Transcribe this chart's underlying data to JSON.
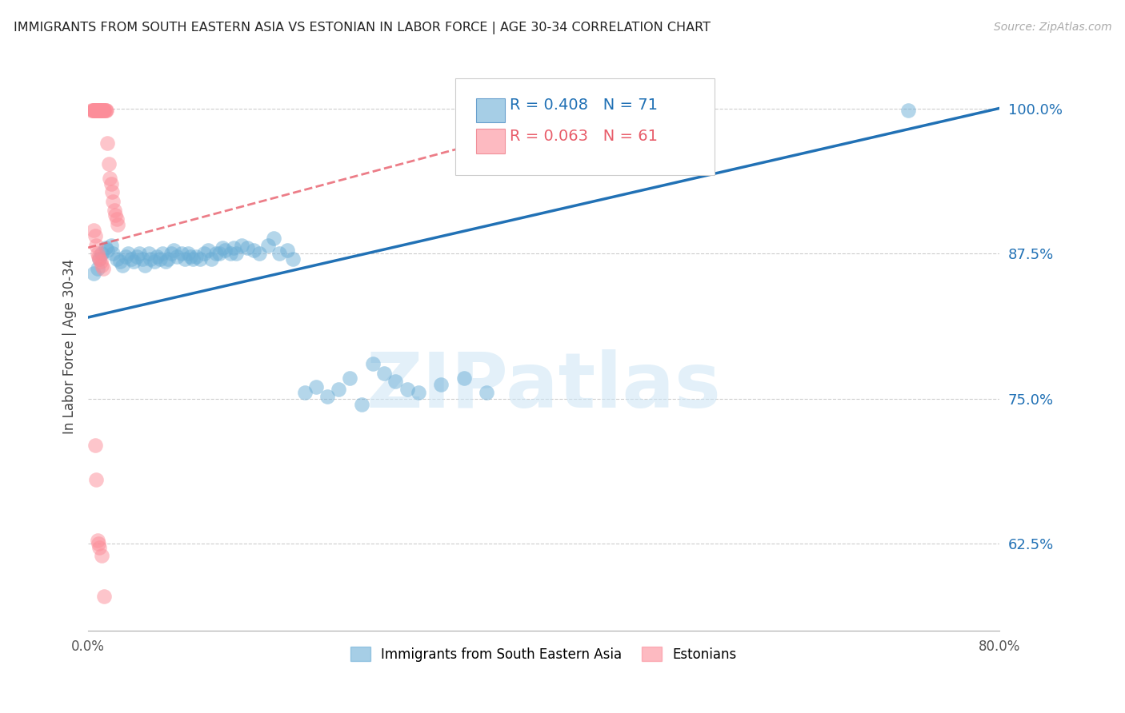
{
  "title": "IMMIGRANTS FROM SOUTH EASTERN ASIA VS ESTONIAN IN LABOR FORCE | AGE 30-34 CORRELATION CHART",
  "source": "Source: ZipAtlas.com",
  "ylabel": "In Labor Force | Age 30-34",
  "xlim": [
    0.0,
    0.8
  ],
  "ylim": [
    0.55,
    1.04
  ],
  "xticks": [
    0.0,
    0.1,
    0.2,
    0.3,
    0.4,
    0.5,
    0.6,
    0.7,
    0.8
  ],
  "xticklabels": [
    "0.0%",
    "",
    "",
    "",
    "",
    "",
    "",
    "",
    "80.0%"
  ],
  "yticks_right": [
    0.625,
    0.75,
    0.875,
    1.0
  ],
  "yticklabels_right": [
    "62.5%",
    "75.0%",
    "87.5%",
    "100.0%"
  ],
  "blue_color": "#6BAED6",
  "pink_color": "#FC8D99",
  "blue_line_color": "#2171B5",
  "pink_line_color": "#E85D6A",
  "legend_R_blue": "R = 0.408",
  "legend_N_blue": "N = 71",
  "legend_R_pink": "R = 0.063",
  "legend_N_pink": "N = 61",
  "legend_label_blue": "Immigrants from South Eastern Asia",
  "legend_label_pink": "Estonians",
  "watermark": "ZIPatlas",
  "blue_scatter_x": [
    0.005,
    0.008,
    0.01,
    0.012,
    0.015,
    0.017,
    0.02,
    0.022,
    0.025,
    0.028,
    0.03,
    0.033,
    0.035,
    0.038,
    0.04,
    0.043,
    0.045,
    0.048,
    0.05,
    0.053,
    0.055,
    0.058,
    0.06,
    0.063,
    0.065,
    0.068,
    0.07,
    0.073,
    0.075,
    0.078,
    0.082,
    0.085,
    0.088,
    0.09,
    0.092,
    0.095,
    0.098,
    0.102,
    0.105,
    0.108,
    0.112,
    0.115,
    0.118,
    0.12,
    0.125,
    0.128,
    0.13,
    0.135,
    0.14,
    0.145,
    0.15,
    0.158,
    0.163,
    0.168,
    0.175,
    0.18,
    0.19,
    0.2,
    0.21,
    0.22,
    0.23,
    0.24,
    0.25,
    0.26,
    0.27,
    0.28,
    0.29,
    0.31,
    0.33,
    0.35,
    0.72
  ],
  "blue_scatter_y": [
    0.858,
    0.862,
    0.87,
    0.875,
    0.88,
    0.878,
    0.882,
    0.875,
    0.87,
    0.868,
    0.865,
    0.872,
    0.875,
    0.87,
    0.868,
    0.872,
    0.875,
    0.87,
    0.865,
    0.875,
    0.87,
    0.868,
    0.872,
    0.87,
    0.875,
    0.868,
    0.87,
    0.875,
    0.878,
    0.872,
    0.875,
    0.87,
    0.875,
    0.872,
    0.87,
    0.872,
    0.87,
    0.875,
    0.878,
    0.87,
    0.875,
    0.875,
    0.88,
    0.878,
    0.875,
    0.88,
    0.875,
    0.882,
    0.88,
    0.878,
    0.875,
    0.882,
    0.888,
    0.875,
    0.878,
    0.87,
    0.755,
    0.76,
    0.752,
    0.758,
    0.768,
    0.745,
    0.78,
    0.772,
    0.765,
    0.758,
    0.755,
    0.762,
    0.768,
    0.755,
    0.998
  ],
  "pink_scatter_x": [
    0.003,
    0.004,
    0.005,
    0.005,
    0.005,
    0.005,
    0.006,
    0.006,
    0.006,
    0.007,
    0.007,
    0.007,
    0.007,
    0.008,
    0.008,
    0.008,
    0.008,
    0.009,
    0.009,
    0.009,
    0.01,
    0.01,
    0.01,
    0.011,
    0.011,
    0.011,
    0.012,
    0.012,
    0.013,
    0.013,
    0.014,
    0.014,
    0.015,
    0.015,
    0.016,
    0.017,
    0.018,
    0.019,
    0.02,
    0.021,
    0.022,
    0.023,
    0.024,
    0.025,
    0.026,
    0.005,
    0.006,
    0.007,
    0.008,
    0.009,
    0.01,
    0.011,
    0.012,
    0.013,
    0.006,
    0.007,
    0.008,
    0.009,
    0.01,
    0.012,
    0.014
  ],
  "pink_scatter_y": [
    0.998,
    0.998,
    0.998,
    0.998,
    0.998,
    0.998,
    0.998,
    0.998,
    0.998,
    0.998,
    0.998,
    0.998,
    0.998,
    0.998,
    0.998,
    0.998,
    0.998,
    0.998,
    0.998,
    0.998,
    0.998,
    0.998,
    0.998,
    0.998,
    0.998,
    0.998,
    0.998,
    0.998,
    0.998,
    0.998,
    0.998,
    0.998,
    0.998,
    0.998,
    0.998,
    0.97,
    0.952,
    0.94,
    0.935,
    0.928,
    0.92,
    0.912,
    0.908,
    0.905,
    0.9,
    0.895,
    0.89,
    0.882,
    0.875,
    0.872,
    0.87,
    0.868,
    0.865,
    0.862,
    0.71,
    0.68,
    0.628,
    0.625,
    0.622,
    0.615,
    0.58
  ],
  "blue_trend_x": [
    0.0,
    0.8
  ],
  "blue_trend_y": [
    0.82,
    1.0
  ],
  "pink_trend_x": [
    0.0,
    0.45
  ],
  "pink_trend_y": [
    0.88,
    0.998
  ]
}
